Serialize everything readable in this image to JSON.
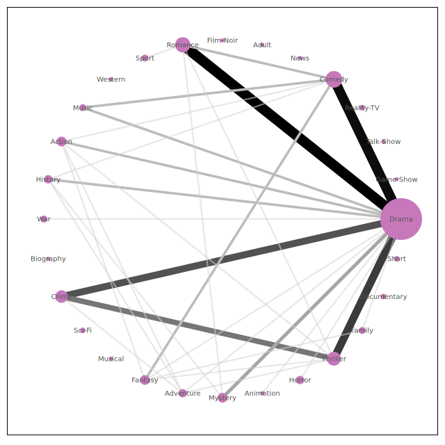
{
  "graph": {
    "node_color": "#c678bb",
    "label_color": "#555555",
    "frame_color": "#000000",
    "nodes": [
      {
        "id": "Drama",
        "size": 30
      },
      {
        "id": "Short",
        "size": 4
      },
      {
        "id": "Documentary",
        "size": 4
      },
      {
        "id": "Family",
        "size": 5
      },
      {
        "id": "Thriller",
        "size": 10
      },
      {
        "id": "Horror",
        "size": 6
      },
      {
        "id": "Animation",
        "size": 3
      },
      {
        "id": "Mystery",
        "size": 7
      },
      {
        "id": "Adventure",
        "size": 6
      },
      {
        "id": "Fantasy",
        "size": 7
      },
      {
        "id": "Musical",
        "size": 3
      },
      {
        "id": "Sci-Fi",
        "size": 4
      },
      {
        "id": "Crime",
        "size": 9
      },
      {
        "id": "Biography",
        "size": 3
      },
      {
        "id": "War",
        "size": 5
      },
      {
        "id": "History",
        "size": 6
      },
      {
        "id": "Action",
        "size": 7
      },
      {
        "id": "Music",
        "size": 5
      },
      {
        "id": "Western",
        "size": 3
      },
      {
        "id": "Sport",
        "size": 5
      },
      {
        "id": "Romance",
        "size": 11
      },
      {
        "id": "Film-Noir",
        "size": 3
      },
      {
        "id": "Adult",
        "size": 3
      },
      {
        "id": "News",
        "size": 3
      },
      {
        "id": "Comedy",
        "size": 12
      },
      {
        "id": "Reality-TV",
        "size": 4
      },
      {
        "id": "Talk-Show",
        "size": 3
      },
      {
        "id": "Game-Show",
        "size": 3
      }
    ],
    "edges": [
      {
        "source": "Drama",
        "target": "Romance",
        "weight": 1.0
      },
      {
        "source": "Drama",
        "target": "Comedy",
        "weight": 0.95
      },
      {
        "source": "Drama",
        "target": "Thriller",
        "weight": 0.75
      },
      {
        "source": "Drama",
        "target": "Crime",
        "weight": 0.65
      },
      {
        "source": "Crime",
        "target": "Thriller",
        "weight": 0.5
      },
      {
        "source": "Drama",
        "target": "Mystery",
        "weight": 0.3
      },
      {
        "source": "Drama",
        "target": "Action",
        "weight": 0.2
      },
      {
        "source": "Drama",
        "target": "History",
        "weight": 0.2
      },
      {
        "source": "Drama",
        "target": "Music",
        "weight": 0.2
      },
      {
        "source": "Romance",
        "target": "Comedy",
        "weight": 0.2
      },
      {
        "source": "Comedy",
        "target": "Music",
        "weight": 0.2
      },
      {
        "source": "Comedy",
        "target": "Fantasy",
        "weight": 0.2
      },
      {
        "source": "Drama",
        "target": "War",
        "weight": 0.1
      },
      {
        "source": "Drama",
        "target": "Fantasy",
        "weight": 0.1
      },
      {
        "source": "Drama",
        "target": "Adventure",
        "weight": 0.1
      },
      {
        "source": "Drama",
        "target": "Horror",
        "weight": 0.1
      },
      {
        "source": "Drama",
        "target": "Family",
        "weight": 0.1
      },
      {
        "source": "Drama",
        "target": "Animation",
        "weight": 0.1
      },
      {
        "source": "Comedy",
        "target": "Action",
        "weight": 0.1
      },
      {
        "source": "Comedy",
        "target": "History",
        "weight": 0.1
      },
      {
        "source": "Romance",
        "target": "Mystery",
        "weight": 0.1
      },
      {
        "source": "Romance",
        "target": "Sport",
        "weight": 0.1
      },
      {
        "source": "Romance",
        "target": "Thriller",
        "weight": 0.1
      },
      {
        "source": "Action",
        "target": "Adventure",
        "weight": 0.1
      },
      {
        "source": "Action",
        "target": "Thriller",
        "weight": 0.1
      },
      {
        "source": "Action",
        "target": "Fantasy",
        "weight": 0.1
      },
      {
        "source": "History",
        "target": "Mystery",
        "weight": 0.1
      },
      {
        "source": "History",
        "target": "Adventure",
        "weight": 0.1
      },
      {
        "source": "Crime",
        "target": "Adventure",
        "weight": 0.1
      },
      {
        "source": "Fantasy",
        "target": "Thriller",
        "weight": 0.1
      },
      {
        "source": "Fantasy",
        "target": "Family",
        "weight": 0.1
      },
      {
        "source": "Adventure",
        "target": "Thriller",
        "weight": 0.1
      }
    ]
  }
}
